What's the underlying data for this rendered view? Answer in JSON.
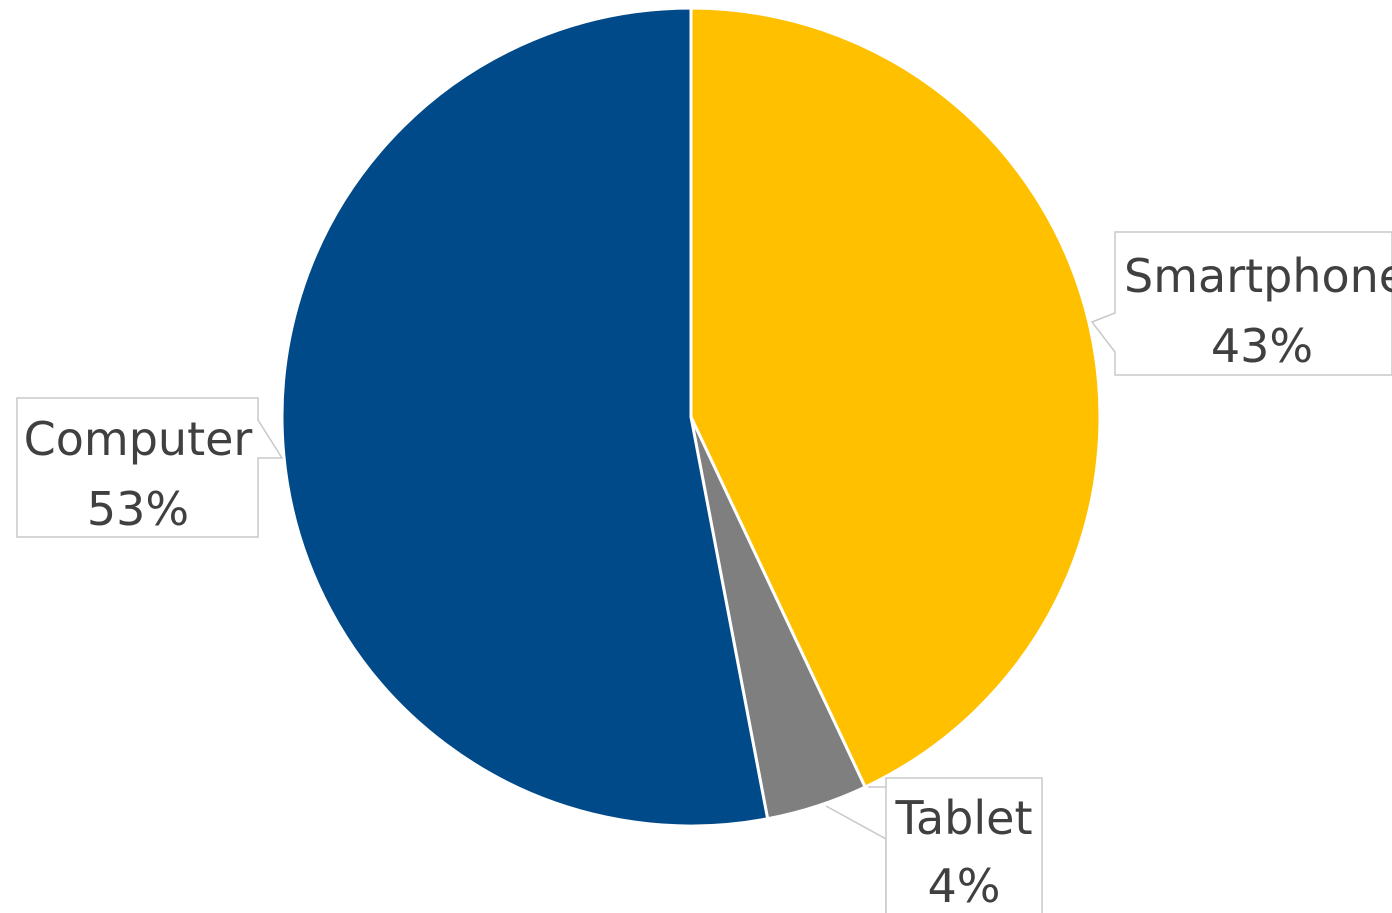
{
  "chart_data": {
    "type": "pie",
    "title": "",
    "start_angle_deg": 0,
    "direction": "clockwise",
    "slices": [
      {
        "label": "Smartphone",
        "value": 43,
        "value_label": "43%",
        "color": "#FFC000"
      },
      {
        "label": "Tablet",
        "value": 4,
        "value_label": "4%",
        "color": "#7F7F7F"
      },
      {
        "label": "Computer",
        "value": 53,
        "value_label": "53%",
        "color": "#004A8A"
      }
    ],
    "data_labels": "outside with callout boxes",
    "legend": "none"
  }
}
